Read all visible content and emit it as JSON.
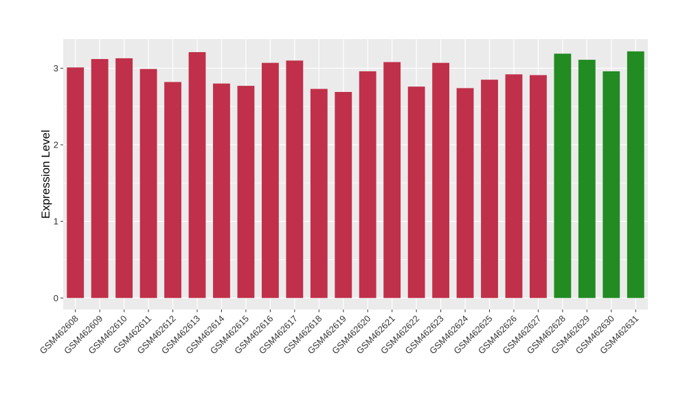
{
  "chart_data": {
    "type": "bar",
    "title": "",
    "xlabel": "",
    "ylabel": "Expression Level",
    "ylim": [
      -0.15,
      3.38
    ],
    "yticks": [
      0,
      1,
      2,
      3
    ],
    "grid": true,
    "legend": "none",
    "categories": [
      "GSM462608",
      "GSM462609",
      "GSM462610",
      "GSM462611",
      "GSM462612",
      "GSM462613",
      "GSM462614",
      "GSM462615",
      "GSM462616",
      "GSM462617",
      "GSM462618",
      "GSM462619",
      "GSM462620",
      "GSM462621",
      "GSM462622",
      "GSM462623",
      "GSM462624",
      "GSM462625",
      "GSM462626",
      "GSM462627",
      "GSM462628",
      "GSM462629",
      "GSM462630",
      "GSM462631"
    ],
    "values": [
      3.01,
      3.12,
      3.13,
      2.99,
      2.82,
      3.21,
      2.8,
      2.77,
      3.07,
      3.1,
      2.73,
      2.69,
      2.96,
      3.08,
      2.76,
      3.07,
      2.74,
      2.85,
      2.92,
      2.91,
      3.19,
      3.11,
      2.96,
      3.22
    ],
    "group_colors": [
      "#c0304a",
      "#c0304a",
      "#c0304a",
      "#c0304a",
      "#c0304a",
      "#c0304a",
      "#c0304a",
      "#c0304a",
      "#c0304a",
      "#c0304a",
      "#c0304a",
      "#c0304a",
      "#c0304a",
      "#c0304a",
      "#c0304a",
      "#c0304a",
      "#c0304a",
      "#c0304a",
      "#c0304a",
      "#c0304a",
      "#228b22",
      "#228b22",
      "#228b22",
      "#228b22"
    ],
    "panel_background": "#ebebeb",
    "grid_color": "#ffffff"
  }
}
